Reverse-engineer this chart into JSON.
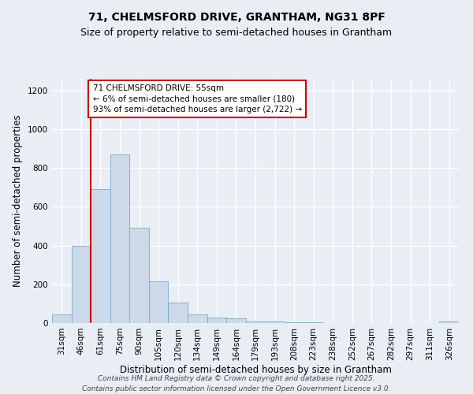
{
  "title_line1": "71, CHELMSFORD DRIVE, GRANTHAM, NG31 8PF",
  "title_line2": "Size of property relative to semi-detached houses in Grantham",
  "xlabel": "Distribution of semi-detached houses by size in Grantham",
  "ylabel": "Number of semi-detached properties",
  "categories": [
    "31sqm",
    "46sqm",
    "61sqm",
    "75sqm",
    "90sqm",
    "105sqm",
    "120sqm",
    "134sqm",
    "149sqm",
    "164sqm",
    "179sqm",
    "193sqm",
    "208sqm",
    "223sqm",
    "238sqm",
    "252sqm",
    "267sqm",
    "282sqm",
    "297sqm",
    "311sqm",
    "326sqm"
  ],
  "values": [
    45,
    400,
    690,
    870,
    490,
    215,
    105,
    45,
    28,
    25,
    10,
    8,
    5,
    3,
    2,
    2,
    1,
    1,
    0,
    0,
    8
  ],
  "bar_color": "#ccd9e8",
  "bar_edge_color": "#7aaac8",
  "vline_x_index": 1.5,
  "vline_color": "#cc0000",
  "annotation_text": "71 CHELMSFORD DRIVE: 55sqm\n← 6% of semi-detached houses are smaller (180)\n93% of semi-detached houses are larger (2,722) →",
  "annotation_box_facecolor": "#ffffff",
  "annotation_box_edgecolor": "#cc0000",
  "ylim": [
    0,
    1260
  ],
  "yticks": [
    0,
    200,
    400,
    600,
    800,
    1000,
    1200
  ],
  "footnote": "Contains HM Land Registry data © Crown copyright and database right 2025.\nContains public sector information licensed under the Open Government Licence v3.0.",
  "background_color": "#e8eef4",
  "plot_bg_color": "#e8eef4",
  "grid_color": "#ffffff",
  "title_fontsize": 10,
  "subtitle_fontsize": 9,
  "axis_label_fontsize": 8.5,
  "tick_fontsize": 7.5,
  "footnote_fontsize": 6.5,
  "annotation_fontsize": 7.5
}
